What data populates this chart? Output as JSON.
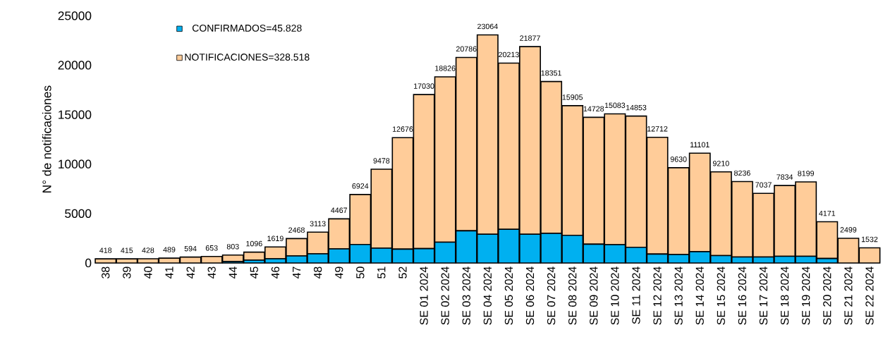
{
  "chart_data": {
    "type": "bar",
    "stacked": true,
    "ylabel": "N° de notificaciones",
    "categories": [
      "38",
      "39",
      "40",
      "41",
      "42",
      "43",
      "44",
      "45",
      "46",
      "47",
      "48",
      "49",
      "50",
      "51",
      "52",
      "SE 01 2024",
      "SE 02 2024",
      "SE 03 2024",
      "SE 04 2024",
      "SE 05 2024",
      "SE 06 2024",
      "SE 07 2024",
      "SE 08 2024",
      "SE 09 2024",
      "SE 10 2024",
      "SE 11 2024",
      "SE 12 2024",
      "SE 13 2024",
      "SE 14 2024",
      "SE 15 2024",
      "SE 16 2024",
      "SE 17 2024",
      "SE 18 2024",
      "SE 19 2024",
      "SE 20 2024",
      "SE 21 2024",
      "SE 22 2024"
    ],
    "series": [
      {
        "name": "CONFIRMADOS=45.828",
        "color": "#00b0f0",
        "values": [
          0,
          0,
          0,
          0,
          0,
          0,
          150,
          280,
          430,
          710,
          930,
          1420,
          1870,
          1500,
          1400,
          1450,
          2100,
          3250,
          2900,
          3400,
          2900,
          3000,
          2800,
          1900,
          1850,
          1580,
          900,
          850,
          1150,
          750,
          600,
          600,
          680,
          680,
          450,
          0,
          0
        ]
      },
      {
        "name": "NOTIFICACIONES=328.518",
        "color": "#ffcc99",
        "values": [
          418,
          415,
          428,
          489,
          594,
          653,
          653,
          816,
          1189,
          1758,
          2183,
          3047,
          5054,
          7978,
          11276,
          15580,
          16726,
          17536,
          20164,
          16813,
          18977,
          15351,
          13105,
          12828,
          13233,
          13273,
          11812,
          8780,
          9951,
          8460,
          7636,
          6437,
          7154,
          7519,
          3721,
          2499,
          1532
        ]
      }
    ],
    "totals": [
      "418",
      "415",
      "428",
      "489",
      "594",
      "653",
      "803",
      "1096",
      "1619",
      "2468",
      "3113",
      "4467",
      "6924",
      "9478",
      "12676",
      "17030",
      "18826",
      "20786",
      "23064",
      "20213",
      "21877",
      "18351",
      "15905",
      "14728",
      "15083",
      "14853",
      "12712",
      "9630",
      "11101",
      "9210",
      "8236",
      "7037",
      "7834",
      "8199",
      "4171",
      "2499",
      "1532"
    ],
    "ylim": [
      0,
      25000
    ],
    "yticks": [
      0,
      5000,
      10000,
      15000,
      20000,
      25000
    ],
    "legend": "top left",
    "grid": false
  }
}
